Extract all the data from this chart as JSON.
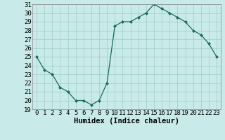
{
  "x": [
    0,
    1,
    2,
    3,
    4,
    5,
    6,
    7,
    8,
    9,
    10,
    11,
    12,
    13,
    14,
    15,
    16,
    17,
    18,
    19,
    20,
    21,
    22,
    23
  ],
  "y": [
    25,
    23.5,
    23,
    21.5,
    21,
    20,
    20,
    19.5,
    20,
    22,
    28.5,
    29,
    29,
    29.5,
    30,
    31,
    30.5,
    30,
    29.5,
    29,
    28,
    27.5,
    26.5,
    25
  ],
  "line_color": "#1a6b5e",
  "marker_color": "#1a6b5e",
  "bg_color": "#c8eae8",
  "grid_color": "#a0ccc8",
  "xlabel": "Humidex (Indice chaleur)",
  "ylim": [
    19,
    31
  ],
  "xlim": [
    -0.5,
    23.5
  ],
  "yticks": [
    19,
    20,
    21,
    22,
    23,
    24,
    25,
    26,
    27,
    28,
    29,
    30,
    31
  ],
  "xticks": [
    0,
    1,
    2,
    3,
    4,
    5,
    6,
    7,
    8,
    9,
    10,
    11,
    12,
    13,
    14,
    15,
    16,
    17,
    18,
    19,
    20,
    21,
    22,
    23
  ],
  "tick_fontsize": 6.5,
  "label_fontsize": 7.5
}
